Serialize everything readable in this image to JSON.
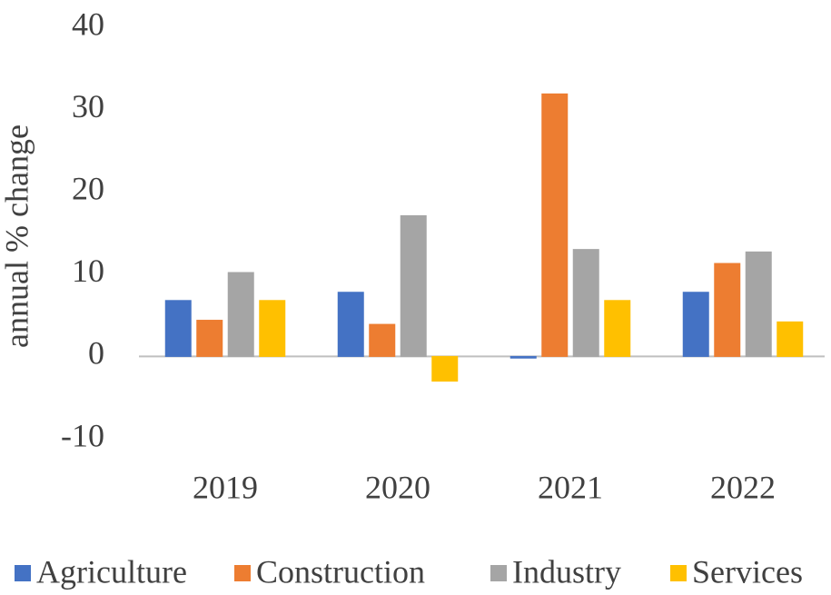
{
  "chart_data": {
    "type": "bar",
    "y_label": "annual % change",
    "categories": [
      "2019",
      "2020",
      "2021",
      "2022"
    ],
    "series": [
      {
        "name": "Agriculture",
        "color": "#4472c4",
        "values": [
          6.8,
          7.8,
          -0.2,
          7.8
        ]
      },
      {
        "name": "Construction",
        "color": "#ed7d31",
        "values": [
          4.4,
          3.9,
          31.9,
          11.3
        ]
      },
      {
        "name": "Industry",
        "color": "#a5a5a5",
        "values": [
          10.2,
          17.1,
          13.0,
          12.7
        ]
      },
      {
        "name": "Services",
        "color": "#ffc000",
        "values": [
          6.8,
          -3.0,
          6.8,
          4.2
        ]
      }
    ],
    "ylim": [
      -10,
      40
    ],
    "yticks": [
      -10,
      0,
      10,
      20,
      30,
      40
    ],
    "grid": false,
    "legend": "bottom"
  }
}
